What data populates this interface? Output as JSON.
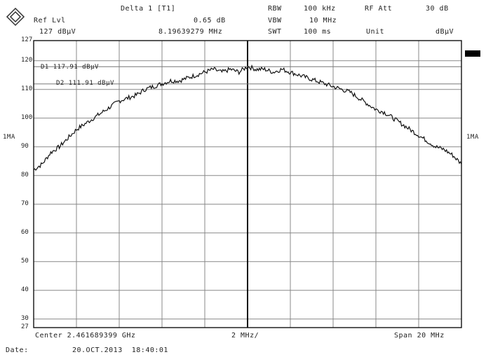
{
  "header": {
    "row1": {
      "title": "Delta 1 [T1]",
      "rbw_label": "RBW",
      "rbw_value": "100 kHz",
      "rf_att_label": "RF Att",
      "rf_att_value": "30 dB"
    },
    "row2": {
      "ref_lvl_label": "Ref Lvl",
      "delta_level": "0.65 dB",
      "vbw_label": "VBW",
      "vbw_value": "10 MHz"
    },
    "row3": {
      "ref_lvl_value": "127 dBµV",
      "delta_freq": "8.19639279 MHz",
      "swt_label": "SWT",
      "swt_value": "100 ms",
      "unit_label": "Unit",
      "unit_value": "dBµV"
    }
  },
  "markers": {
    "d1": "D1 117.91 dBµV",
    "d2": "D2 111.91 dBµV",
    "left_tag": "1MA",
    "right_tag": "1MA"
  },
  "footer": {
    "center": "Center 2.461689399 GHz",
    "div": "2 MHz/",
    "span": "Span 20 MHz",
    "date_label": "Date:",
    "date_value": "20.OCT.2013  18:40:01"
  },
  "chart_data": {
    "type": "line",
    "title": "",
    "xlabel": "",
    "ylabel": "",
    "ylim": [
      27,
      127
    ],
    "yticks": [
      127,
      120,
      110,
      100,
      90,
      80,
      70,
      60,
      50,
      40,
      30,
      27
    ],
    "xlim": [
      2451.689399,
      2471.689399
    ],
    "x_units": "MHz",
    "grid": true,
    "reference_lines": [
      {
        "name": "D1",
        "y": 117.91
      },
      {
        "name": "D2",
        "y": 111.91
      }
    ],
    "center_marker_x": 2461.689399,
    "series": [
      {
        "x": [
          2451.689399,
          2452.089399,
          2452.489399,
          2452.889399,
          2453.289399,
          2453.689399,
          2454.089399,
          2454.489399,
          2454.889399,
          2455.289399,
          2455.689399,
          2456.089399,
          2456.489399,
          2456.889399,
          2457.289399,
          2457.689399,
          2458.089399,
          2458.489399,
          2458.889399,
          2459.289399,
          2459.689399,
          2460.089399,
          2460.489399,
          2460.889399,
          2461.289399,
          2461.689399,
          2462.089399,
          2462.489399,
          2462.889399,
          2463.289399,
          2463.689399,
          2464.089399,
          2464.489399,
          2464.889399,
          2465.289399,
          2465.689399,
          2466.089399,
          2466.489399,
          2466.889399,
          2467.289399,
          2467.689399,
          2468.089399,
          2468.489399,
          2468.889399,
          2469.289399,
          2469.689399,
          2470.089399,
          2470.489399,
          2470.889399,
          2471.289399,
          2471.689399
        ],
        "values": [
          82,
          84,
          88,
          90,
          93,
          96,
          98,
          100,
          102,
          104,
          106,
          107,
          108,
          110,
          111,
          112,
          113,
          113,
          114,
          115,
          116,
          117,
          116,
          117,
          116,
          118,
          117,
          117,
          116,
          117,
          116,
          115,
          114,
          113,
          112,
          111,
          110,
          109,
          107,
          105,
          103,
          102,
          100,
          98,
          96,
          94,
          92,
          90,
          89,
          87,
          84
        ]
      }
    ]
  }
}
